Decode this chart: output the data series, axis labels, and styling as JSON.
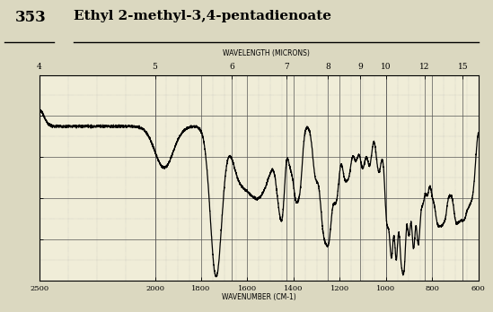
{
  "title_number": "353",
  "title_name": "Ethyl 2-methyl-3,4-pentadienoate",
  "wavelength_label": "WAVELENGTH (MICRONS)",
  "wavenumber_label": "WAVENUMBER (CM-1)",
  "wavelength_ticks_um": [
    4,
    5,
    6,
    7,
    8,
    9,
    10,
    12,
    15
  ],
  "wavenumber_ticks": [
    2500,
    2000,
    1800,
    1600,
    1400,
    1200,
    1000,
    800,
    600
  ],
  "x_min": 2500,
  "x_max": 600,
  "y_min": 0,
  "y_max": 100,
  "bg_color": "#f0edd8",
  "header_bg": "#e8e4cc",
  "line_color": "#000000"
}
